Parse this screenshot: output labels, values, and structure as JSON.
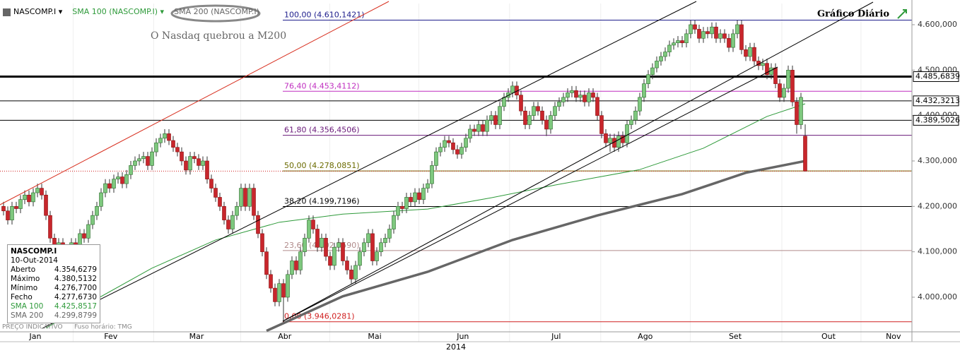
{
  "toolbar": {
    "symbol": "NASCOMP.I"
  },
  "chart_data": {
    "type": "candlestick",
    "title": "Gráfico Diário",
    "name": "NASCOMP.I",
    "annotation": "O Nasdaq quebrou a M200",
    "up_color": "#7ec87e",
    "down_color": "#c8262c",
    "open": [
      4200,
      4190,
      4170,
      4200,
      4195,
      4215,
      4225,
      4210,
      4230,
      4240,
      4225,
      4180,
      4130,
      4110,
      4120,
      4090,
      4100,
      4120,
      4110,
      4140,
      4130,
      4160,
      4180,
      4200,
      4230,
      4250,
      4240,
      4260,
      4265,
      4250,
      4270,
      4290,
      4300,
      4305,
      4310,
      4290,
      4320,
      4340,
      4350,
      4360,
      4345,
      4330,
      4320,
      4300,
      4280,
      4310,
      4305,
      4290,
      4300,
      4260,
      4240,
      4220,
      4200,
      4170,
      4150,
      4180,
      4200,
      4240,
      4200,
      4240,
      4180,
      4140,
      4100,
      4050,
      4020,
      3990,
      4030,
      4000,
      4050,
      4080,
      4060,
      4100,
      4130,
      4170,
      4150,
      4110,
      4130,
      4090,
      4070,
      4110,
      4120,
      4080,
      4060,
      4040,
      4070,
      4100,
      4120,
      4140,
      4080,
      4100,
      4120,
      4130,
      4150,
      4180,
      4200,
      4195,
      4220,
      4210,
      4230,
      4215,
      4240,
      4250,
      4290,
      4320,
      4330,
      4345,
      4340,
      4325,
      4315,
      4330,
      4350,
      4370,
      4365,
      4380,
      4365,
      4390,
      4400,
      4380,
      4420,
      4440,
      4450,
      4465,
      4445,
      4410,
      4380,
      4400,
      4420,
      4410,
      4390,
      4370,
      4400,
      4420,
      4430,
      4440,
      4450,
      4455,
      4440,
      4445,
      4430,
      4450,
      4440,
      4400,
      4360,
      4340,
      4350,
      4330,
      4355,
      4340,
      4380,
      4390,
      4410,
      4440,
      4470,
      4490,
      4505,
      4520,
      4530,
      4540,
      4555,
      4560,
      4565,
      4560,
      4580,
      4600,
      4590,
      4570,
      4585,
      4580,
      4595,
      4570,
      4580,
      4570,
      4550,
      4580,
      4600,
      4545,
      4530,
      4550,
      4520,
      4510,
      4515,
      4490,
      4505,
      4470,
      4440,
      4460,
      4500,
      4430,
      4380,
      4354.6279
    ],
    "high": [
      4210,
      4200,
      4210,
      4210,
      4225,
      4235,
      4235,
      4240,
      4250,
      4250,
      4235,
      4190,
      4140,
      4130,
      4130,
      4110,
      4130,
      4130,
      4150,
      4150,
      4170,
      4190,
      4210,
      4240,
      4260,
      4260,
      4270,
      4275,
      4275,
      4280,
      4300,
      4310,
      4315,
      4320,
      4320,
      4330,
      4350,
      4360,
      4370,
      4370,
      4355,
      4340,
      4330,
      4310,
      4320,
      4320,
      4315,
      4310,
      4310,
      4270,
      4250,
      4230,
      4210,
      4180,
      4190,
      4210,
      4250,
      4250,
      4250,
      4250,
      4190,
      4150,
      4110,
      4060,
      4030,
      4040,
      4040,
      4060,
      4090,
      4090,
      4110,
      4140,
      4180,
      4180,
      4160,
      4140,
      4140,
      4100,
      4120,
      4130,
      4130,
      4090,
      4070,
      4080,
      4110,
      4130,
      4150,
      4150,
      4110,
      4130,
      4140,
      4160,
      4190,
      4210,
      4210,
      4230,
      4230,
      4240,
      4240,
      4250,
      4260,
      4300,
      4330,
      4340,
      4355,
      4355,
      4350,
      4335,
      4340,
      4360,
      4380,
      4380,
      4390,
      4390,
      4400,
      4410,
      4410,
      4430,
      4450,
      4460,
      4475,
      4475,
      4455,
      4420,
      4410,
      4430,
      4430,
      4420,
      4400,
      4410,
      4430,
      4440,
      4450,
      4460,
      4465,
      4465,
      4455,
      4455,
      4460,
      4460,
      4450,
      4410,
      4370,
      4360,
      4360,
      4365,
      4365,
      4390,
      4400,
      4420,
      4450,
      4480,
      4500,
      4515,
      4530,
      4540,
      4550,
      4565,
      4570,
      4575,
      4575,
      4590,
      4610,
      4610,
      4600,
      4595,
      4595,
      4605,
      4605,
      4590,
      4590,
      4580,
      4590,
      4610,
      4610,
      4555,
      4560,
      4560,
      4530,
      4525,
      4525,
      4515,
      4515,
      4480,
      4470,
      4510,
      4510,
      4440,
      4450,
      4380.5132
    ],
    "low": [
      4180,
      4160,
      4160,
      4185,
      4185,
      4205,
      4200,
      4200,
      4220,
      4215,
      4170,
      4120,
      4100,
      4100,
      4080,
      4080,
      4090,
      4100,
      4100,
      4120,
      4120,
      4150,
      4170,
      4190,
      4220,
      4230,
      4230,
      4250,
      4240,
      4240,
      4260,
      4280,
      4290,
      4295,
      4280,
      4280,
      4310,
      4330,
      4340,
      4335,
      4320,
      4310,
      4290,
      4270,
      4270,
      4295,
      4280,
      4280,
      4250,
      4230,
      4210,
      4190,
      4160,
      4140,
      4140,
      4170,
      4190,
      4190,
      4190,
      4170,
      4130,
      4090,
      4040,
      4010,
      3980,
      3980,
      3946,
      3990,
      4040,
      4050,
      4050,
      4090,
      4120,
      4140,
      4100,
      4100,
      4080,
      4060,
      4060,
      4100,
      4070,
      4050,
      4030,
      4030,
      4060,
      4090,
      4110,
      4070,
      4070,
      4090,
      4110,
      4120,
      4140,
      4170,
      4185,
      4185,
      4200,
      4200,
      4205,
      4205,
      4230,
      4240,
      4280,
      4310,
      4320,
      4330,
      4315,
      4305,
      4305,
      4320,
      4340,
      4355,
      4355,
      4355,
      4355,
      4380,
      4370,
      4370,
      4410,
      4430,
      4440,
      4435,
      4400,
      4370,
      4370,
      4390,
      4400,
      4380,
      4355,
      4360,
      4390,
      4410,
      4420,
      4430,
      4440,
      4430,
      4430,
      4420,
      4420,
      4430,
      4390,
      4350,
      4330,
      4320,
      4320,
      4320,
      4330,
      4330,
      4370,
      4380,
      4400,
      4430,
      4460,
      4480,
      4495,
      4510,
      4520,
      4530,
      4545,
      4550,
      4550,
      4550,
      4570,
      4580,
      4560,
      4560,
      4570,
      4570,
      4560,
      4560,
      4560,
      4540,
      4540,
      4570,
      4535,
      4520,
      4520,
      4510,
      4500,
      4500,
      4480,
      4480,
      4460,
      4430,
      4430,
      4450,
      4420,
      4360,
      4370,
      4276.77
    ],
    "close": [
      4190,
      4170,
      4200,
      4195,
      4215,
      4225,
      4210,
      4230,
      4240,
      4225,
      4180,
      4130,
      4110,
      4120,
      4090,
      4100,
      4120,
      4110,
      4140,
      4130,
      4160,
      4180,
      4200,
      4230,
      4250,
      4240,
      4260,
      4265,
      4250,
      4270,
      4290,
      4300,
      4305,
      4310,
      4290,
      4320,
      4340,
      4350,
      4360,
      4345,
      4330,
      4320,
      4300,
      4280,
      4310,
      4305,
      4290,
      4300,
      4260,
      4240,
      4220,
      4200,
      4170,
      4150,
      4180,
      4200,
      4240,
      4200,
      4240,
      4180,
      4140,
      4100,
      4050,
      4020,
      3990,
      4030,
      4000,
      4050,
      4080,
      4060,
      4100,
      4130,
      4170,
      4150,
      4110,
      4130,
      4090,
      4070,
      4110,
      4120,
      4080,
      4060,
      4040,
      4070,
      4100,
      4120,
      4140,
      4080,
      4100,
      4120,
      4130,
      4150,
      4180,
      4200,
      4195,
      4220,
      4210,
      4230,
      4215,
      4240,
      4250,
      4290,
      4320,
      4330,
      4345,
      4340,
      4325,
      4315,
      4330,
      4350,
      4370,
      4365,
      4380,
      4365,
      4390,
      4400,
      4380,
      4420,
      4440,
      4450,
      4465,
      4445,
      4410,
      4380,
      4400,
      4420,
      4410,
      4390,
      4370,
      4400,
      4420,
      4430,
      4440,
      4450,
      4455,
      4440,
      4445,
      4430,
      4450,
      4440,
      4400,
      4360,
      4340,
      4350,
      4330,
      4355,
      4340,
      4380,
      4390,
      4410,
      4440,
      4470,
      4490,
      4505,
      4520,
      4530,
      4540,
      4555,
      4560,
      4565,
      4560,
      4580,
      4600,
      4590,
      4570,
      4585,
      4580,
      4595,
      4570,
      4580,
      4570,
      4550,
      4580,
      4600,
      4545,
      4530,
      4550,
      4520,
      4510,
      4515,
      4490,
      4505,
      4470,
      4440,
      4460,
      4500,
      4430,
      4380,
      4440,
      4277.673
    ],
    "series": [
      {
        "name": "SMA 100 (NASCOMP.I)",
        "color": "#2e9a3a",
        "width": 1,
        "x": [
          10,
          20,
          35,
          50,
          65,
          80,
          100,
          115,
          130,
          150,
          165,
          180,
          189
        ],
        "values": [
          3932,
          3986,
          4064,
          4126,
          4165,
          4183,
          4194,
          4219,
          4247,
          4281,
          4328,
          4398,
          4425.8517
        ]
      },
      {
        "name": "SMA 200 (NASCOMP.I)",
        "color": "#666666",
        "width": 3.5,
        "x": [
          62,
          80,
          100,
          120,
          140,
          160,
          175,
          189
        ],
        "values": [
          3926,
          4002,
          4056,
          4126,
          4180,
          4227,
          4274,
          4299.8799
        ]
      }
    ],
    "fib_levels": [
      {
        "label": "100,00 (4.610,1421)",
        "value": 4610.1421,
        "color": "#1d1d8c"
      },
      {
        "label": "76,40 (4.453,4112)",
        "value": 4453.4112,
        "color": "#c02fc0"
      },
      {
        "label": "61,80 (4.356,4506)",
        "value": 4356.4506,
        "color": "#6a1a7a"
      },
      {
        "label": "50,00 (4.278,0851)",
        "value": 4278.0851,
        "color": "#6b6b00"
      },
      {
        "label": "38,20 (4.199,7196)",
        "value": 4199.7196,
        "color": "#000000"
      },
      {
        "label": "23,60 (4.102,7590)",
        "value": 4102.759,
        "color": "#b08a8a"
      },
      {
        "label": "0,00 (3.946,0281)",
        "value": 3946.0281,
        "color": "#d02020"
      }
    ],
    "price_lines": [
      {
        "value": 4485.6839,
        "label": "4.485,6839",
        "width": 3
      },
      {
        "value": 4432.3213,
        "label": "4.432,3213",
        "width": 1
      },
      {
        "value": 4389.5026,
        "label": "4.389,5026",
        "width": 1
      }
    ],
    "ylim": [
      3923.8,
      4646.6
    ],
    "yticks": [
      {
        "value": 4000,
        "label": "4.000,000"
      },
      {
        "value": 4100,
        "label": "4.100,000"
      },
      {
        "value": 4200,
        "label": "4.200,000"
      },
      {
        "value": 4300,
        "label": "4.300,000"
      },
      {
        "value": 4400,
        "label": "4.400,000"
      },
      {
        "value": 4500,
        "label": "4.500,000"
      },
      {
        "value": 4600,
        "label": "4.600,000"
      }
    ],
    "xlim": [
      -0.833,
      214.167
    ],
    "xticks": [
      {
        "value": 7.5,
        "label": "Jan"
      },
      {
        "value": 25.3,
        "label": "Fev"
      },
      {
        "value": 45.5,
        "label": "Mar"
      },
      {
        "value": 66.3,
        "label": "Abr"
      },
      {
        "value": 87.5,
        "label": "Mai"
      },
      {
        "value": 108.3,
        "label": "Jun"
      },
      {
        "value": 130.3,
        "label": "Jul"
      },
      {
        "value": 151.3,
        "label": "Ago"
      },
      {
        "value": 172.5,
        "label": "Set"
      },
      {
        "value": 194.5,
        "label": "Out"
      },
      {
        "value": 209.8,
        "label": "Nov"
      }
    ],
    "x_title": "2014"
  },
  "info_panel": {
    "title": "NASCOMP.I",
    "date": "10-Out-2014",
    "rows": [
      [
        "Aberto",
        "4.354,6279"
      ],
      [
        "Máximo",
        "4.380,5132"
      ],
      [
        "Mínimo",
        "4.276,7700"
      ],
      [
        "Fecho",
        "4.277,6730"
      ],
      [
        "SMA 100",
        "4.425,8517"
      ],
      [
        "SMA 200",
        "4.299,8799"
      ]
    ]
  },
  "footer": {
    "note": "PREÇO INDICATIVO",
    "timezone": "Fuso horário: TMG"
  }
}
